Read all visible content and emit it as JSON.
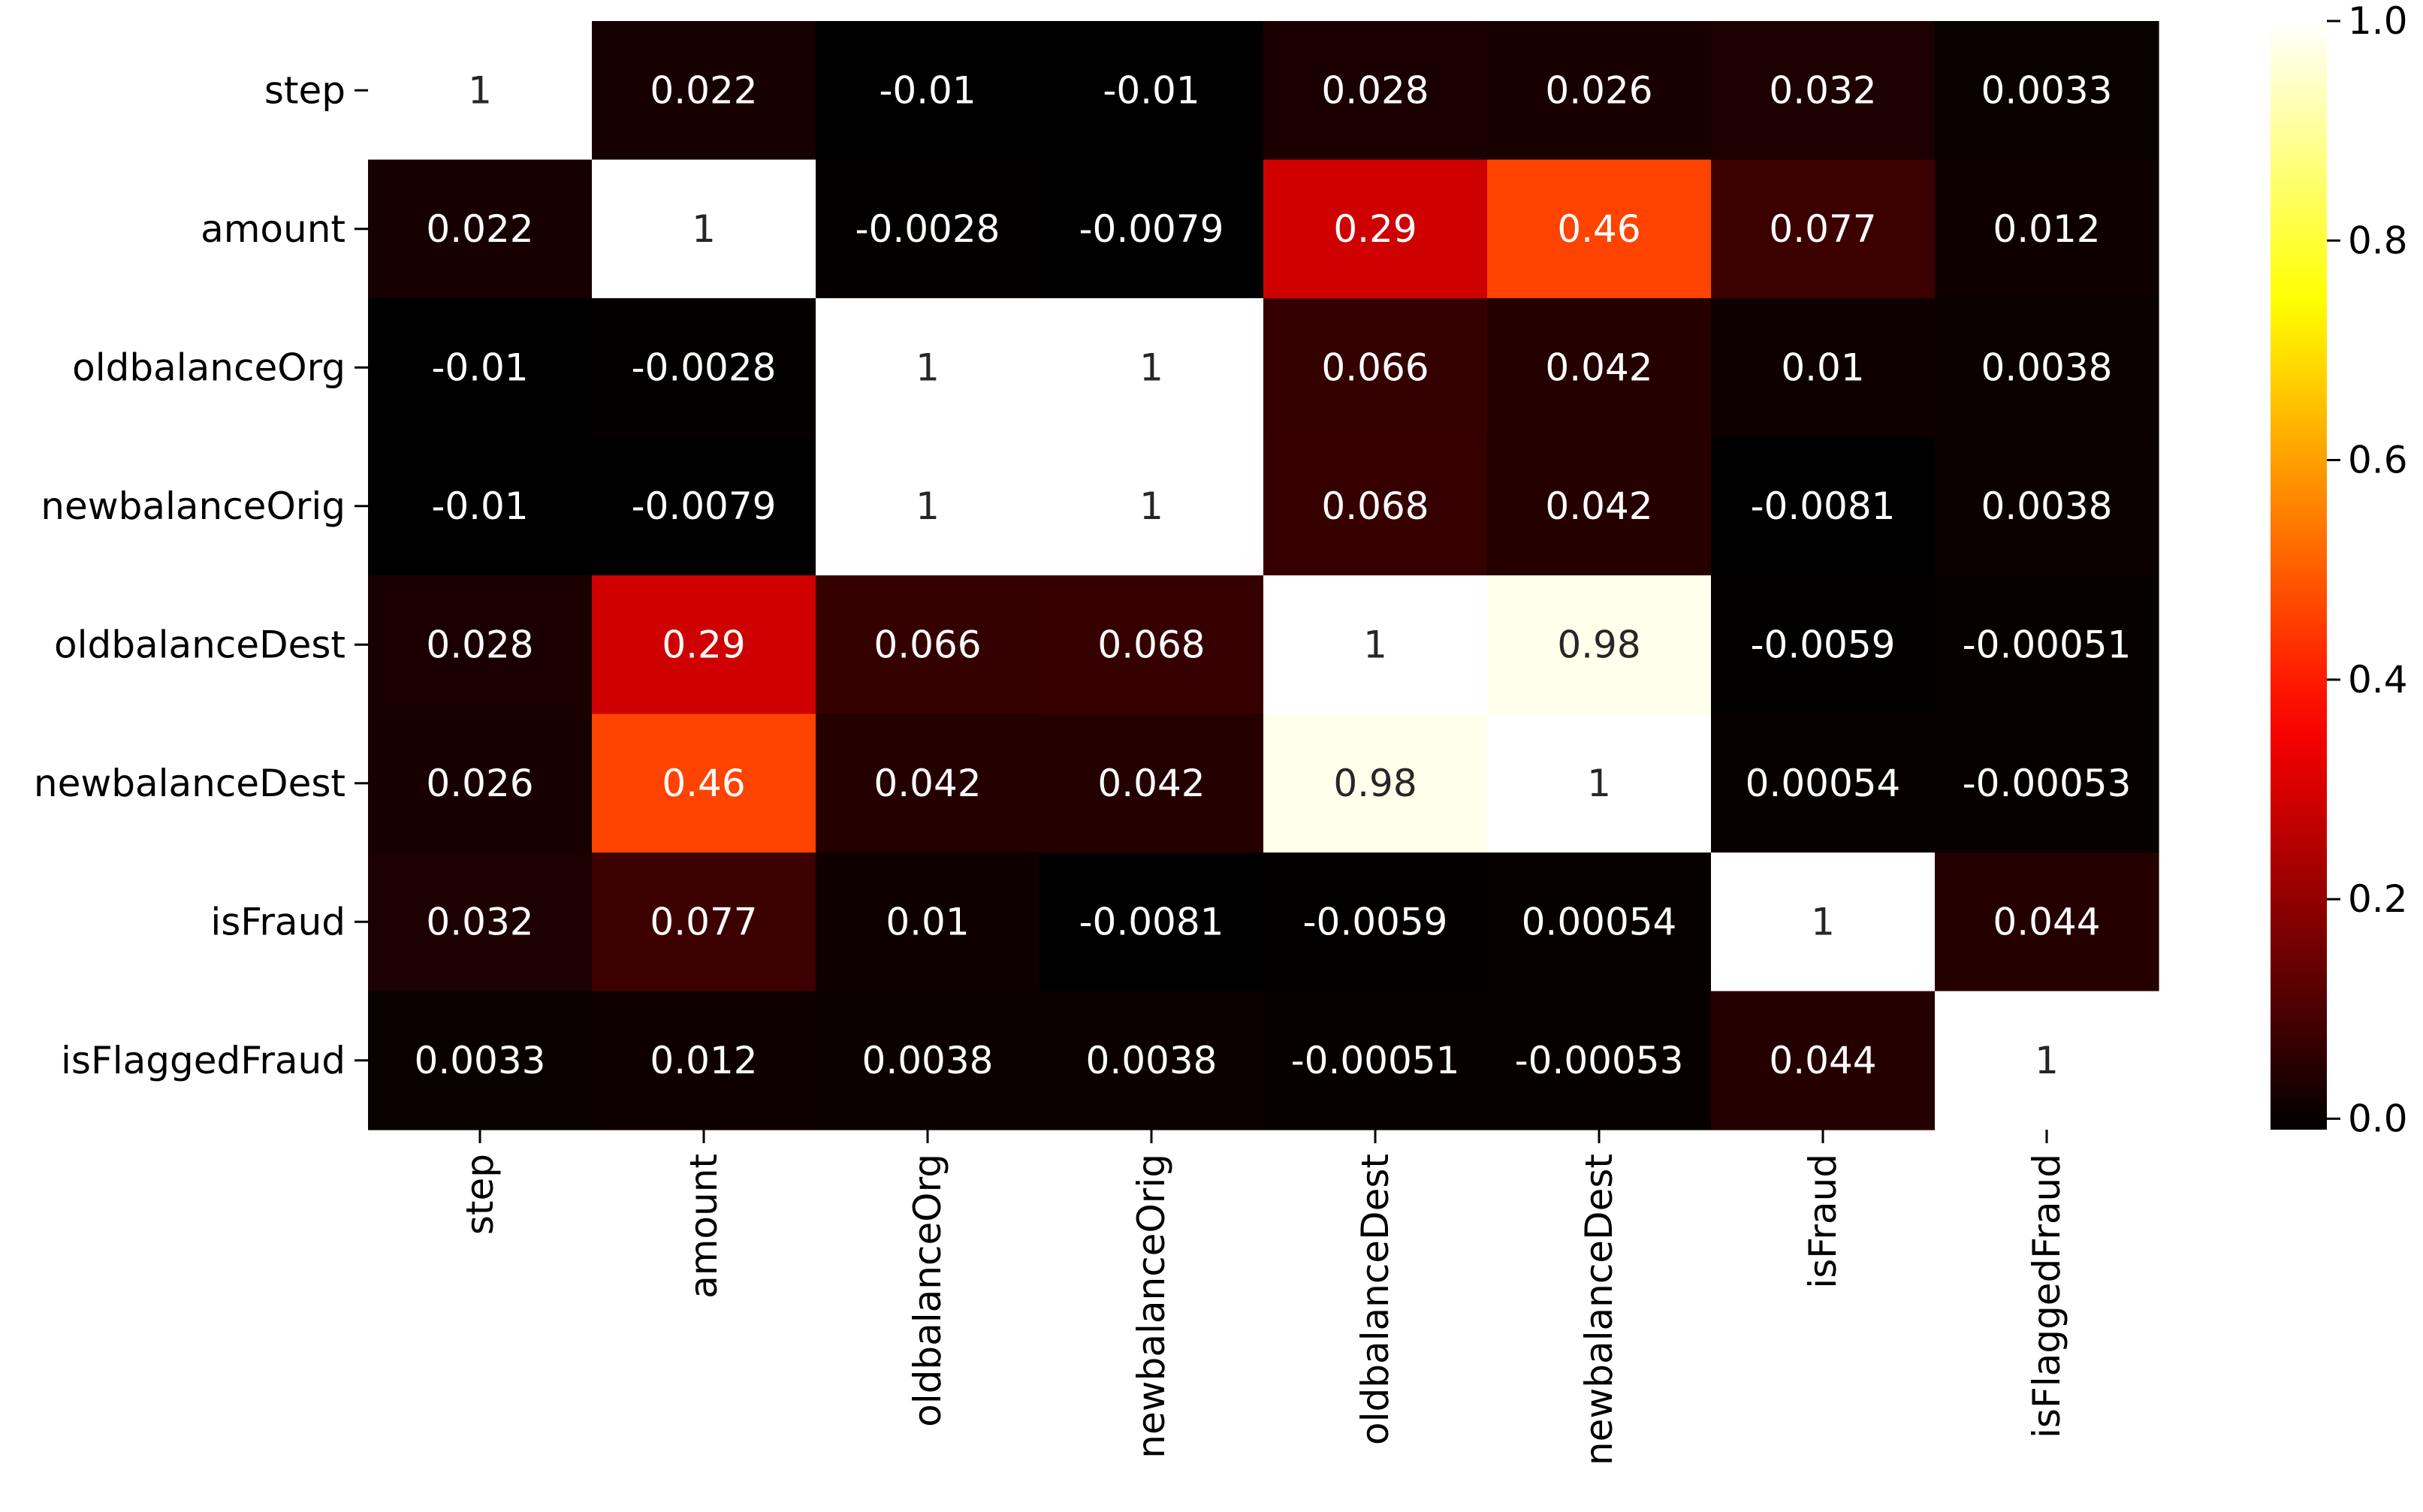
{
  "chart_data": {
    "type": "heatmap",
    "title": "",
    "xlabel": "",
    "ylabel": "",
    "colormap": "hot",
    "x_labels": [
      "step",
      "amount",
      "oldbalanceOrg",
      "newbalanceOrig",
      "oldbalanceDest",
      "newbalanceDest",
      "isFraud",
      "isFlaggedFraud"
    ],
    "y_labels": [
      "step",
      "amount",
      "oldbalanceOrg",
      "newbalanceOrig",
      "oldbalanceDest",
      "newbalanceDest",
      "isFraud",
      "isFlaggedFraud"
    ],
    "values": [
      [
        1,
        0.022,
        -0.01,
        -0.01,
        0.028,
        0.026,
        0.032,
        0.0033
      ],
      [
        0.022,
        1,
        -0.0028,
        -0.0079,
        0.29,
        0.46,
        0.077,
        0.012
      ],
      [
        -0.01,
        -0.0028,
        1,
        1,
        0.066,
        0.042,
        0.01,
        0.0038
      ],
      [
        -0.01,
        -0.0079,
        1,
        1,
        0.068,
        0.042,
        -0.0081,
        0.0038
      ],
      [
        0.028,
        0.29,
        0.066,
        0.068,
        1,
        0.98,
        -0.0059,
        -0.00051
      ],
      [
        0.026,
        0.46,
        0.042,
        0.042,
        0.98,
        1,
        0.00054,
        -0.00053
      ],
      [
        0.032,
        0.077,
        0.01,
        -0.0081,
        -0.0059,
        0.00054,
        1,
        0.044
      ],
      [
        0.0033,
        0.012,
        0.0038,
        0.0038,
        -0.00051,
        -0.00053,
        0.044,
        1
      ]
    ],
    "annotations": [
      [
        "1",
        "0.022",
        "-0.01",
        "-0.01",
        "0.028",
        "0.026",
        "0.032",
        "0.0033"
      ],
      [
        "0.022",
        "1",
        "-0.0028",
        "-0.0079",
        "0.29",
        "0.46",
        "0.077",
        "0.012"
      ],
      [
        "-0.01",
        "-0.0028",
        "1",
        "1",
        "0.066",
        "0.042",
        "0.01",
        "0.0038"
      ],
      [
        "-0.01",
        "-0.0079",
        "1",
        "1",
        "0.068",
        "0.042",
        "-0.0081",
        "0.0038"
      ],
      [
        "0.028",
        "0.29",
        "0.066",
        "0.068",
        "1",
        "0.98",
        "-0.0059",
        "-0.00051"
      ],
      [
        "0.026",
        "0.46",
        "0.042",
        "0.042",
        "0.98",
        "1",
        "0.00054",
        "-0.00053"
      ],
      [
        "0.032",
        "0.077",
        "0.01",
        "-0.0081",
        "-0.0059",
        "0.00054",
        "1",
        "0.044"
      ],
      [
        "0.0033",
        "0.012",
        "0.0038",
        "0.0038",
        "-0.00051",
        "-0.00053",
        "0.044",
        "1"
      ]
    ],
    "vmin": -0.01,
    "vmax": 1.0,
    "colorbar": {
      "ticks": [
        0.0,
        0.2,
        0.4,
        0.6,
        0.8,
        1.0
      ],
      "tick_labels": [
        "0.0",
        "0.2",
        "0.4",
        "0.6",
        "0.8",
        "1.0"
      ]
    },
    "annotation_colors": {
      "light": "#ffffff",
      "dark": "#262626"
    }
  }
}
